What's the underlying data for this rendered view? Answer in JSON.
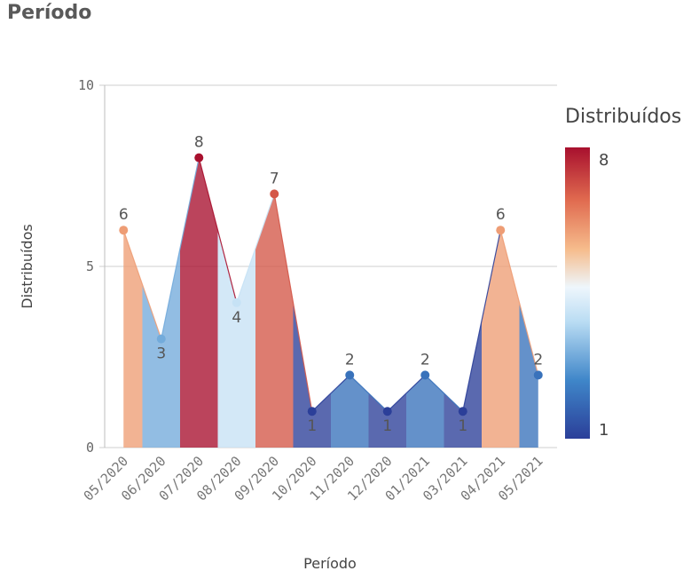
{
  "page": {
    "title": "Período"
  },
  "colors": {
    "low": "#2b3f99",
    "mid": "#e4f0fb",
    "high": "#a8102e"
  },
  "chart_data": {
    "type": "area",
    "title": "Período",
    "xlabel": "Período",
    "ylabel": "Distribuídos",
    "categories": [
      "05/2020",
      "06/2020",
      "07/2020",
      "08/2020",
      "09/2020",
      "10/2020",
      "11/2020",
      "12/2020",
      "01/2021",
      "03/2021",
      "04/2021",
      "05/2021"
    ],
    "values": [
      6,
      3,
      8,
      4,
      7,
      1,
      2,
      1,
      2,
      1,
      6,
      2
    ],
    "ylim": [
      0,
      10
    ],
    "yticks": [
      "0",
      "5",
      "10"
    ],
    "grid": true,
    "legend": {
      "title": "Distribuídos",
      "min_label": "1",
      "max_label": "8",
      "placement": "right"
    }
  }
}
